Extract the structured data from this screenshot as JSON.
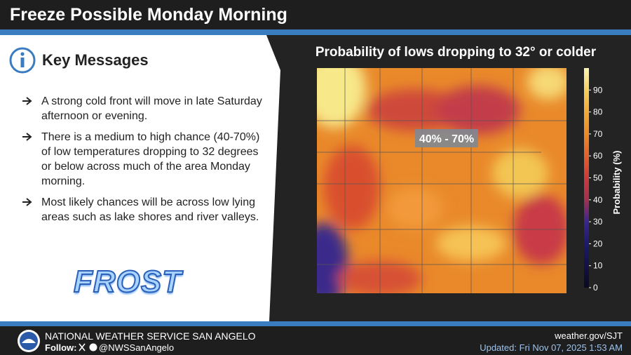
{
  "header": {
    "title": "Freeze Possible Monday Morning"
  },
  "key_messages": {
    "title": "Key Messages",
    "bullets": [
      "A strong cold front will move in late Saturday afternoon or evening.",
      "There is a medium to high chance (40-70%) of low temperatures dropping to 32 degrees or below across much of the area Monday morning.",
      "Most likely chances will be across low lying areas such as lake shores and river valleys."
    ],
    "image_text": "FROST"
  },
  "map": {
    "title": "Probability of lows dropping to 32° or colder",
    "overlay_label": "40% - 70%",
    "colorbar": {
      "label": "Probability (%)",
      "lim": [
        0,
        100
      ],
      "ticks": [
        0,
        10,
        20,
        30,
        40,
        50,
        60,
        70,
        80,
        90
      ]
    }
  },
  "footer": {
    "office": "NATIONAL WEATHER SERVICE SAN ANGELO",
    "follow": "Follow:",
    "handle": "@NWSSanAngelo",
    "website": "weather.gov/SJT",
    "updated": "Updated: Fri Nov 07, 2025 1:53 AM"
  }
}
